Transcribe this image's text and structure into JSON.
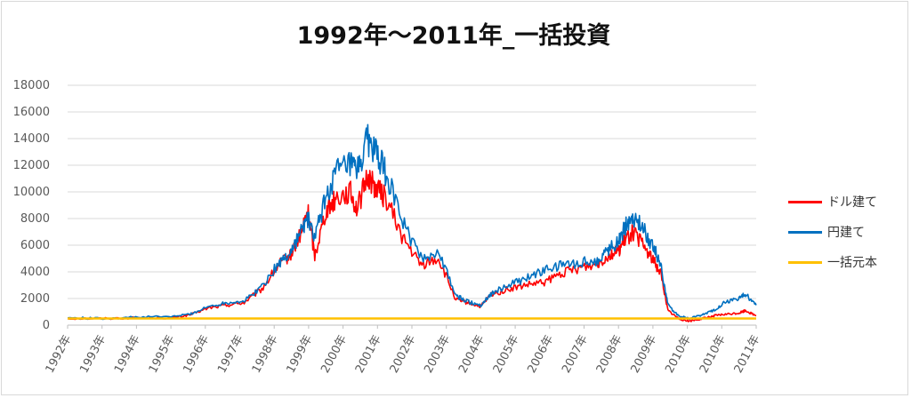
{
  "chart_data": {
    "type": "line",
    "title": "1992年～2011年_一括投資",
    "ylim": [
      0,
      18000
    ],
    "y_ticks": [
      "0",
      "2000",
      "4000",
      "6000",
      "8000",
      "10000",
      "12000",
      "14000",
      "16000",
      "18000"
    ],
    "x_ticks": [
      "1992年",
      "1993年",
      "1994年",
      "1995年",
      "1996年",
      "1997年",
      "1998年",
      "1999年",
      "2000年",
      "2001年",
      "2002年",
      "2003年",
      "2004年",
      "2005年",
      "2006年",
      "2007年",
      "2008年",
      "2009年",
      "2010年",
      "2010年",
      "2011年"
    ],
    "grid": true,
    "legend_position": "right",
    "x": [
      1992.0,
      1993.0,
      1994.0,
      1995.0,
      1995.5,
      1996.0,
      1996.5,
      1997.0,
      1997.5,
      1998.0,
      1998.3,
      1998.6,
      1998.8,
      1999.0,
      1999.3,
      1999.6,
      2000.0,
      2000.2,
      2000.5,
      2000.7,
      2001.0,
      2001.5,
      2002.0,
      2002.5,
      2003.0,
      2003.3,
      2003.7,
      2004.0,
      2004.5,
      2005.0,
      2005.5,
      2006.0,
      2006.5,
      2007.0,
      2007.3,
      2007.6,
      2007.8,
      2008.0,
      2008.3,
      2008.6,
      2008.8,
      2009.0,
      2009.3,
      2009.6,
      2010.0,
      2010.3,
      2010.6,
      2011.0,
      2011.2,
      2011.5
    ],
    "series": [
      {
        "name": "ドル建て",
        "color": "#ff0000",
        "values": [
          500,
          500,
          550,
          550,
          800,
          1300,
          1500,
          1700,
          2700,
          4600,
          5200,
          6800,
          8600,
          5200,
          8500,
          9600,
          10000,
          8700,
          11200,
          10400,
          9600,
          6500,
          4500,
          5000,
          1900,
          1700,
          1400,
          2300,
          2700,
          3000,
          3200,
          3900,
          4300,
          4600,
          5200,
          5600,
          6400,
          7000,
          6000,
          4800,
          3900,
          1100,
          500,
          300,
          500,
          700,
          800,
          900,
          1100,
          700
        ]
      },
      {
        "name": "円建て",
        "color": "#0070c0",
        "values": [
          550,
          500,
          600,
          650,
          850,
          1400,
          1700,
          1800,
          2900,
          4700,
          5400,
          7000,
          8000,
          6500,
          9500,
          11500,
          12000,
          11500,
          14000,
          13000,
          11500,
          7700,
          5000,
          5500,
          2200,
          1800,
          1500,
          2400,
          3000,
          3500,
          4100,
          4500,
          4700,
          4800,
          5700,
          6300,
          7400,
          8200,
          7200,
          5800,
          4500,
          1500,
          700,
          500,
          800,
          1100,
          1700,
          2000,
          2300,
          1500
        ]
      },
      {
        "name": "一括元本",
        "color": "#ffc000",
        "values": [
          500,
          500,
          500,
          500,
          500,
          500,
          500,
          500,
          500,
          500,
          500,
          500,
          500,
          500,
          500,
          500,
          500,
          500,
          500,
          500,
          500,
          500,
          500,
          500,
          500,
          500,
          500,
          500,
          500,
          500,
          500,
          500,
          500,
          500,
          500,
          500,
          500,
          500,
          500,
          500,
          500,
          500,
          500,
          500,
          500,
          500,
          500,
          500,
          500,
          500
        ]
      }
    ]
  }
}
